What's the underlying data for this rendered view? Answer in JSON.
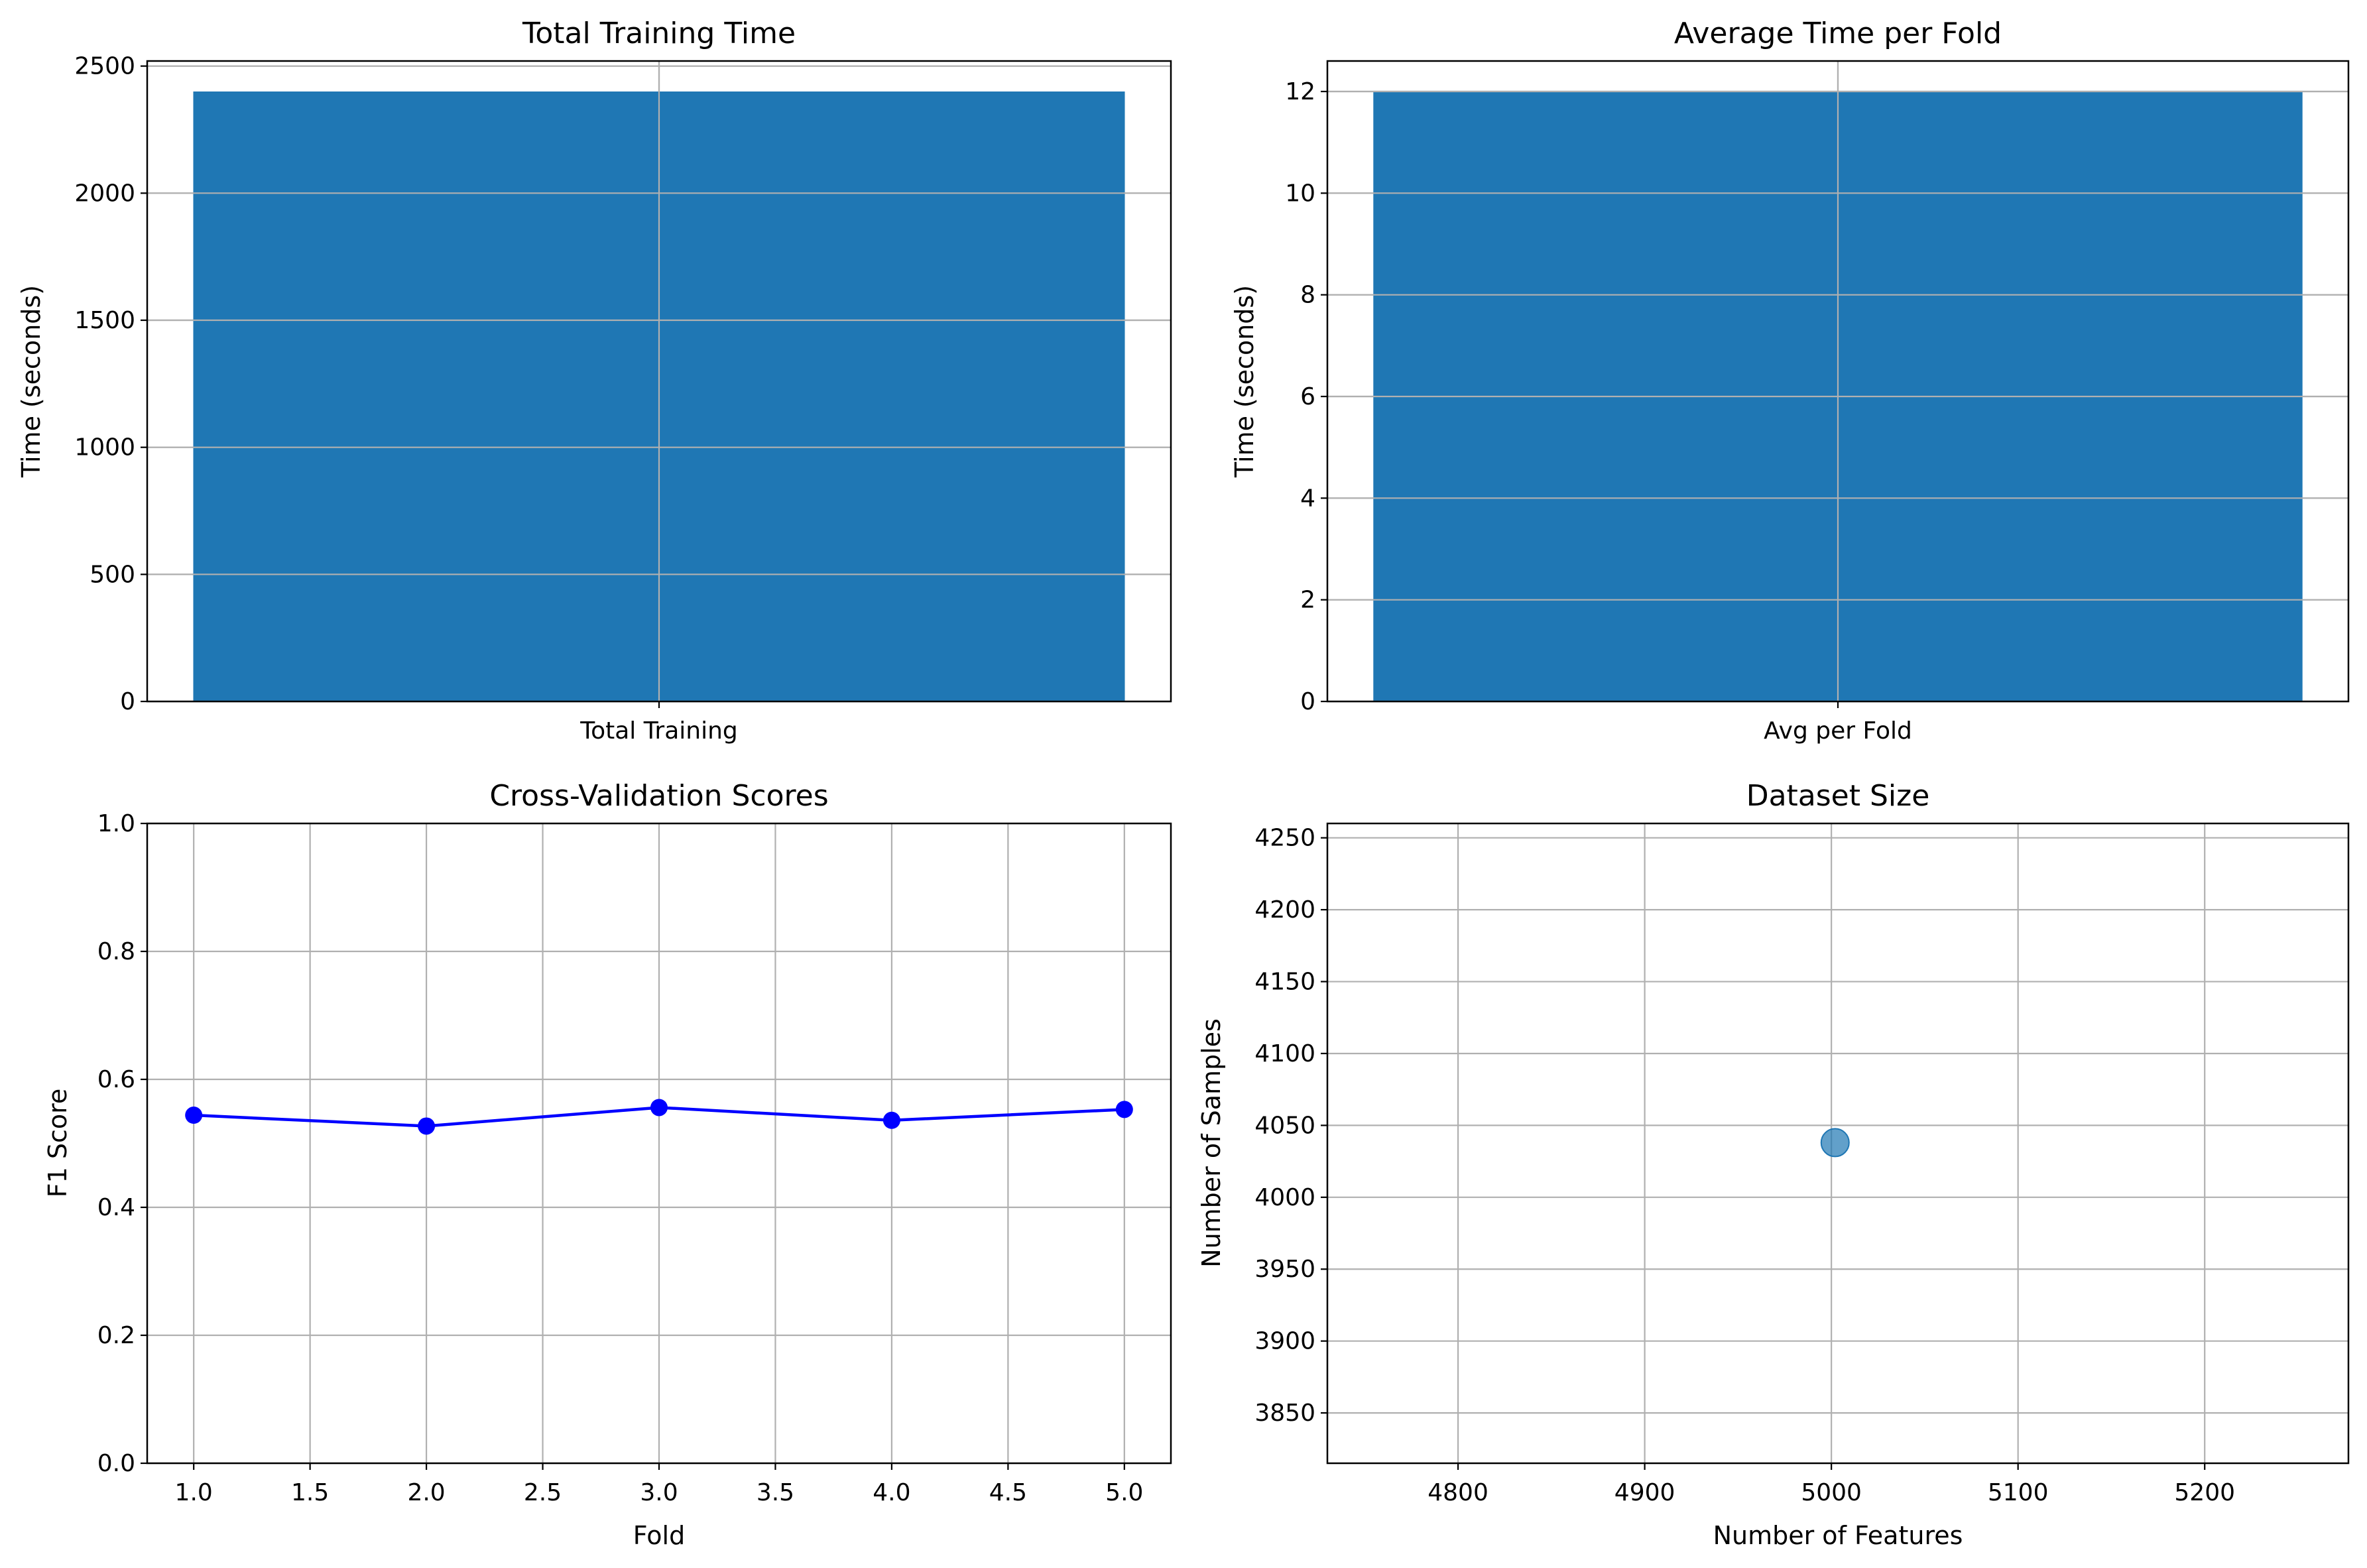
{
  "colors": {
    "bar": "#1f77b4",
    "line": "#0000ff",
    "scatter": "#1f77b4",
    "grid": "#b0b0b0"
  },
  "chart_data": [
    {
      "type": "bar",
      "title": "Total Training Time",
      "xlabel": "",
      "ylabel": "Time (seconds)",
      "categories": [
        "Total Training"
      ],
      "values": [
        2400
      ],
      "ylim": [
        0,
        2520
      ],
      "yticks": [
        0,
        500,
        1000,
        1500,
        2000,
        2500
      ],
      "grid": true
    },
    {
      "type": "bar",
      "title": "Average Time per Fold",
      "xlabel": "",
      "ylabel": "Time (seconds)",
      "categories": [
        "Avg per Fold"
      ],
      "values": [
        12
      ],
      "ylim": [
        0,
        12.6
      ],
      "yticks": [
        0,
        2,
        4,
        6,
        8,
        10,
        12
      ],
      "grid": true
    },
    {
      "type": "line",
      "title": "Cross-Validation Scores",
      "xlabel": "Fold",
      "ylabel": "F1 Score",
      "x": [
        1,
        2,
        3,
        4,
        5
      ],
      "y": [
        0.544,
        0.527,
        0.556,
        0.536,
        0.553
      ],
      "xlim": [
        0.8,
        5.2
      ],
      "ylim": [
        0,
        1
      ],
      "xticks": [
        "1.0",
        "1.5",
        "2.0",
        "2.5",
        "3.0",
        "3.5",
        "4.0",
        "4.5",
        "5.0"
      ],
      "yticks": [
        "0.0",
        "0.2",
        "0.4",
        "0.6",
        "0.8",
        "1.0"
      ],
      "grid": true
    },
    {
      "type": "scatter",
      "title": "Dataset Size",
      "xlabel": "Number of Features",
      "ylabel": "Number of Samples",
      "points": [
        {
          "x": 5002,
          "y": 4038
        }
      ],
      "xlim": [
        4730,
        5277
      ],
      "ylim": [
        3815,
        4260
      ],
      "xticks": [
        4800,
        4900,
        5000,
        5100,
        5200
      ],
      "yticks": [
        3850,
        3900,
        3950,
        4000,
        4050,
        4100,
        4150,
        4200,
        4250
      ],
      "grid": true
    }
  ]
}
